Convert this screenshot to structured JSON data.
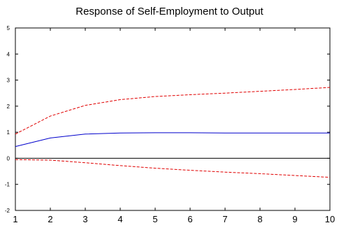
{
  "chart_data": {
    "type": "line",
    "title": "Response of Self-Employment to Output",
    "xlabel": "",
    "ylabel": "",
    "x": [
      1,
      2,
      3,
      4,
      5,
      6,
      7,
      8,
      9,
      10
    ],
    "xlim": [
      1,
      10
    ],
    "ylim": [
      -2,
      5
    ],
    "yticks": [
      -2,
      -1,
      0,
      1,
      2,
      3,
      4,
      5
    ],
    "xticks": [
      1,
      2,
      3,
      4,
      5,
      6,
      7,
      8,
      9,
      10
    ],
    "grid": false,
    "legend": "none",
    "zero_line": true,
    "series": [
      {
        "role": "response",
        "color": "#0000cc",
        "style": "solid",
        "values": [
          0.45,
          0.78,
          0.93,
          0.97,
          0.98,
          0.98,
          0.97,
          0.97,
          0.97,
          0.97
        ]
      },
      {
        "role": "upper-band",
        "color": "#e00000",
        "style": "dashed",
        "values": [
          0.93,
          1.62,
          2.03,
          2.25,
          2.37,
          2.44,
          2.5,
          2.57,
          2.64,
          2.72
        ]
      },
      {
        "role": "lower-band",
        "color": "#e00000",
        "style": "dashed",
        "values": [
          -0.05,
          -0.07,
          -0.17,
          -0.28,
          -0.38,
          -0.46,
          -0.53,
          -0.59,
          -0.66,
          -0.73
        ]
      }
    ]
  }
}
